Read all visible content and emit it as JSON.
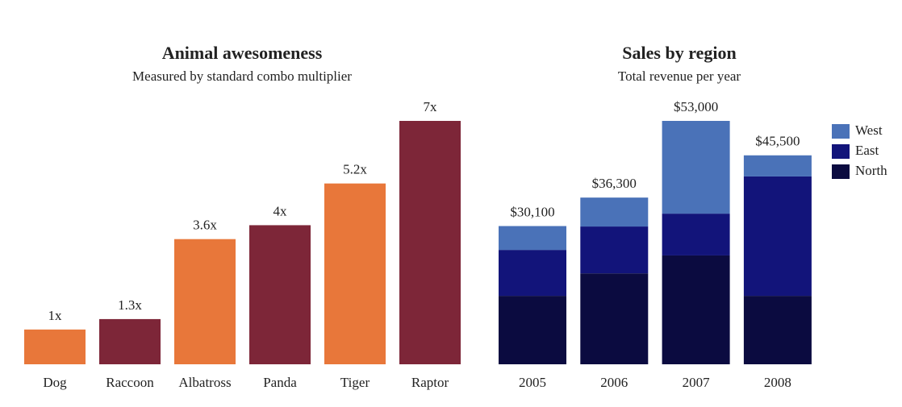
{
  "chart_data": [
    {
      "type": "bar",
      "title": "Animal awesomeness",
      "subtitle": "Measured by standard combo multiplier",
      "categories": [
        "Dog",
        "Raccoon",
        "Albatross",
        "Panda",
        "Tiger",
        "Raptor"
      ],
      "values": [
        1,
        1.3,
        3.6,
        4,
        5.2,
        7
      ],
      "value_labels": [
        "1x",
        "1.3x",
        "3.6x",
        "4x",
        "5.2x",
        "7x"
      ],
      "colors": [
        "#e8773a",
        "#7d2638",
        "#e8773a",
        "#7d2638",
        "#e8773a",
        "#7d2638"
      ]
    },
    {
      "type": "stacked_bar",
      "title": "Sales by region",
      "subtitle": "Total revenue per year",
      "categories": [
        "2005",
        "2006",
        "2007",
        "2008"
      ],
      "series": [
        {
          "name": "North",
          "color": "#0b0b40",
          "values": [
            14900,
            19800,
            23700,
            14900
          ]
        },
        {
          "name": "East",
          "color": "#12147a",
          "values": [
            10000,
            10200,
            9100,
            26000
          ]
        },
        {
          "name": "West",
          "color": "#4a72b8",
          "values": [
            5200,
            6300,
            20200,
            4600
          ]
        }
      ],
      "totals": [
        30100,
        36300,
        53000,
        45500
      ],
      "total_labels": [
        "$30,100",
        "$36,300",
        "$53,000",
        "$45,500"
      ],
      "legend": "right"
    }
  ]
}
